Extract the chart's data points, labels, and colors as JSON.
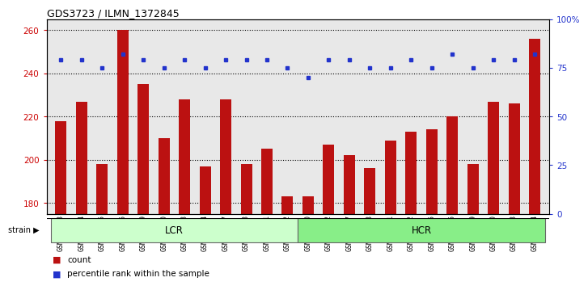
{
  "title": "GDS3723 / ILMN_1372845",
  "samples": [
    "GSM429923",
    "GSM429924",
    "GSM429925",
    "GSM429926",
    "GSM429929",
    "GSM429930",
    "GSM429933",
    "GSM429934",
    "GSM429937",
    "GSM429938",
    "GSM429941",
    "GSM429942",
    "GSM429920",
    "GSM429922",
    "GSM429927",
    "GSM429928",
    "GSM429931",
    "GSM429932",
    "GSM429935",
    "GSM429936",
    "GSM429939",
    "GSM429940",
    "GSM429943",
    "GSM429944"
  ],
  "counts": [
    218,
    227,
    198,
    260,
    235,
    210,
    228,
    197,
    228,
    198,
    205,
    183,
    183,
    207,
    202,
    196,
    209,
    213,
    214,
    220,
    198,
    227,
    226,
    256
  ],
  "percentile_ranks": [
    79,
    79,
    75,
    82,
    79,
    75,
    79,
    75,
    79,
    79,
    79,
    75,
    70,
    79,
    79,
    75,
    75,
    79,
    75,
    82,
    75,
    79,
    79,
    82
  ],
  "lcr_count": 12,
  "hcr_count": 12,
  "ylim_left": [
    175,
    265
  ],
  "ylim_right": [
    0,
    100
  ],
  "yticks_left": [
    180,
    200,
    220,
    240,
    260
  ],
  "yticks_right": [
    0,
    25,
    50,
    75,
    100
  ],
  "bar_color": "#bb1111",
  "dot_color": "#2233cc",
  "lcr_color": "#ccffcc",
  "hcr_color": "#88ee88",
  "background_color": "#ffffff",
  "axis_bg_color": "#e8e8e8",
  "legend_count_color": "#bb1111",
  "legend_dot_color": "#2233cc",
  "ytick_left_color": "#cc0000",
  "ytick_right_color": "#2233cc"
}
